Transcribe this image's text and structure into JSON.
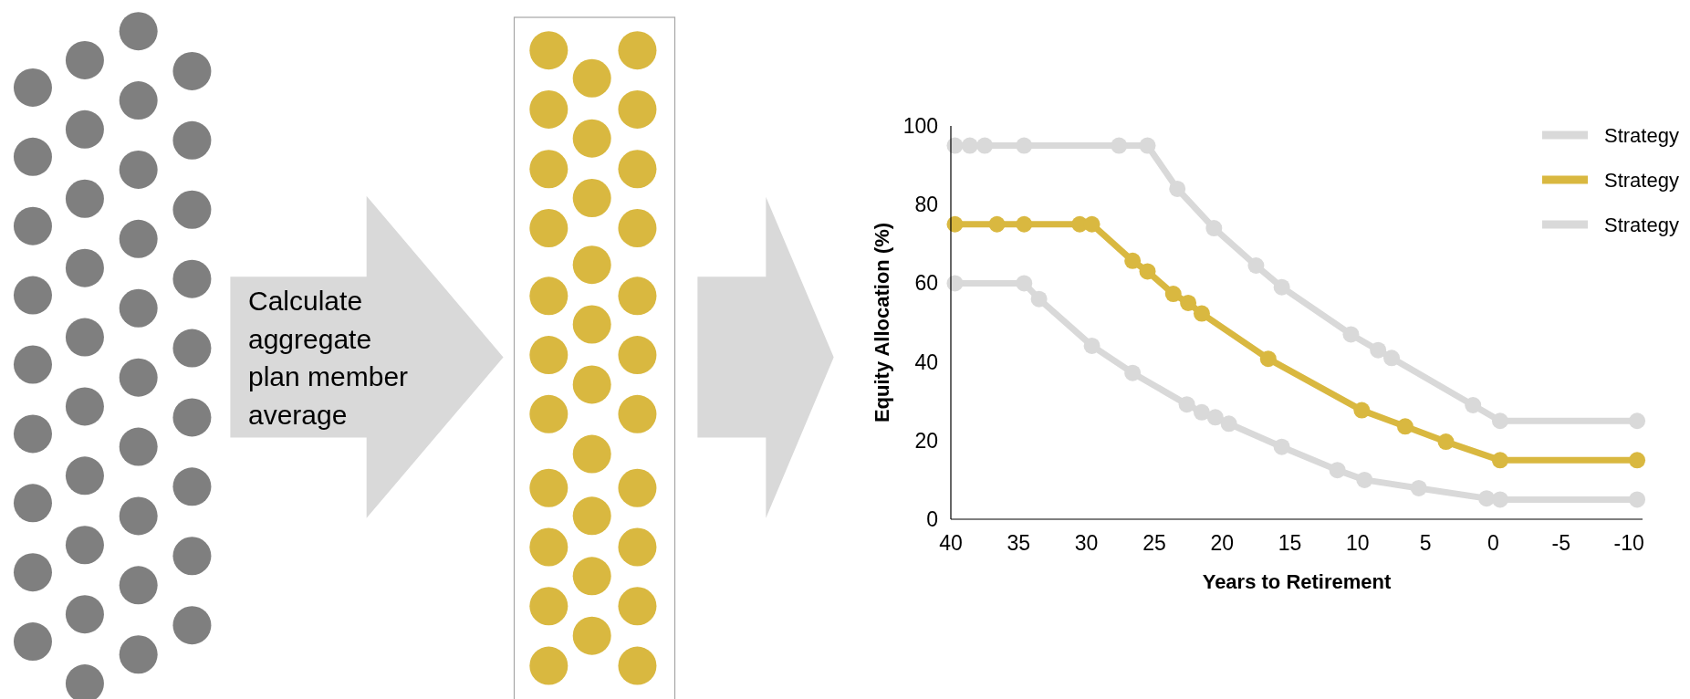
{
  "chart_data": {
    "type": "line",
    "xlabel": "Years to Retirement",
    "ylabel": "Equity Allocation (%)",
    "annotations": [
      "Calculate aggregate plan member average"
    ],
    "xlim": [
      40,
      -11
    ],
    "xticks": [
      40,
      35,
      30,
      25,
      20,
      15,
      10,
      5,
      0,
      {
        "value": -5,
        "label": "-5"
      },
      {
        "value": -10,
        "label": "-10"
      }
    ],
    "ylim": [
      0,
      100
    ],
    "yticks": [
      0,
      20,
      40,
      60,
      80,
      100
    ],
    "grid": false,
    "legend": "top right",
    "marker": "circle",
    "line_style": "solid",
    "series": [
      {
        "name": "Strategy",
        "color": "#d9d9d9",
        "x": [
          39.7,
          38.6,
          37.5,
          34.6,
          27.6,
          25.5,
          23.3,
          20.6,
          17.5,
          15.6,
          10.5,
          8.5,
          7.5,
          1.5,
          -0.5,
          -10.6
        ],
        "values": [
          95,
          95,
          95,
          95,
          95,
          95,
          84,
          74,
          64.5,
          59,
          47,
          43,
          41,
          29,
          25,
          25
        ]
      },
      {
        "name": "Strategy",
        "color": "#d9b840",
        "x": [
          39.7,
          36.6,
          34.6,
          30.5,
          29.6,
          26.6,
          25.5,
          23.6,
          22.5,
          21.5,
          16.6,
          9.7,
          6.5,
          3.5,
          -0.5,
          -10.6
        ],
        "values": [
          75,
          75,
          75,
          75,
          75,
          65.7,
          63,
          57.3,
          55,
          52.3,
          40.8,
          27.7,
          23.6,
          19.7,
          15,
          15
        ]
      },
      {
        "name": "Strategy",
        "color": "#d9d9d9",
        "x": [
          39.7,
          34.6,
          33.5,
          29.6,
          26.6,
          22.6,
          21.5,
          20.5,
          19.5,
          15.6,
          11.5,
          9.5,
          5.5,
          0.5,
          -0.5,
          -10.6
        ],
        "values": [
          60,
          60,
          56,
          44.1,
          37.2,
          29.2,
          27.2,
          25.9,
          24.3,
          18.4,
          12.5,
          10,
          7.9,
          5.3,
          5,
          5
        ]
      }
    ]
  }
}
